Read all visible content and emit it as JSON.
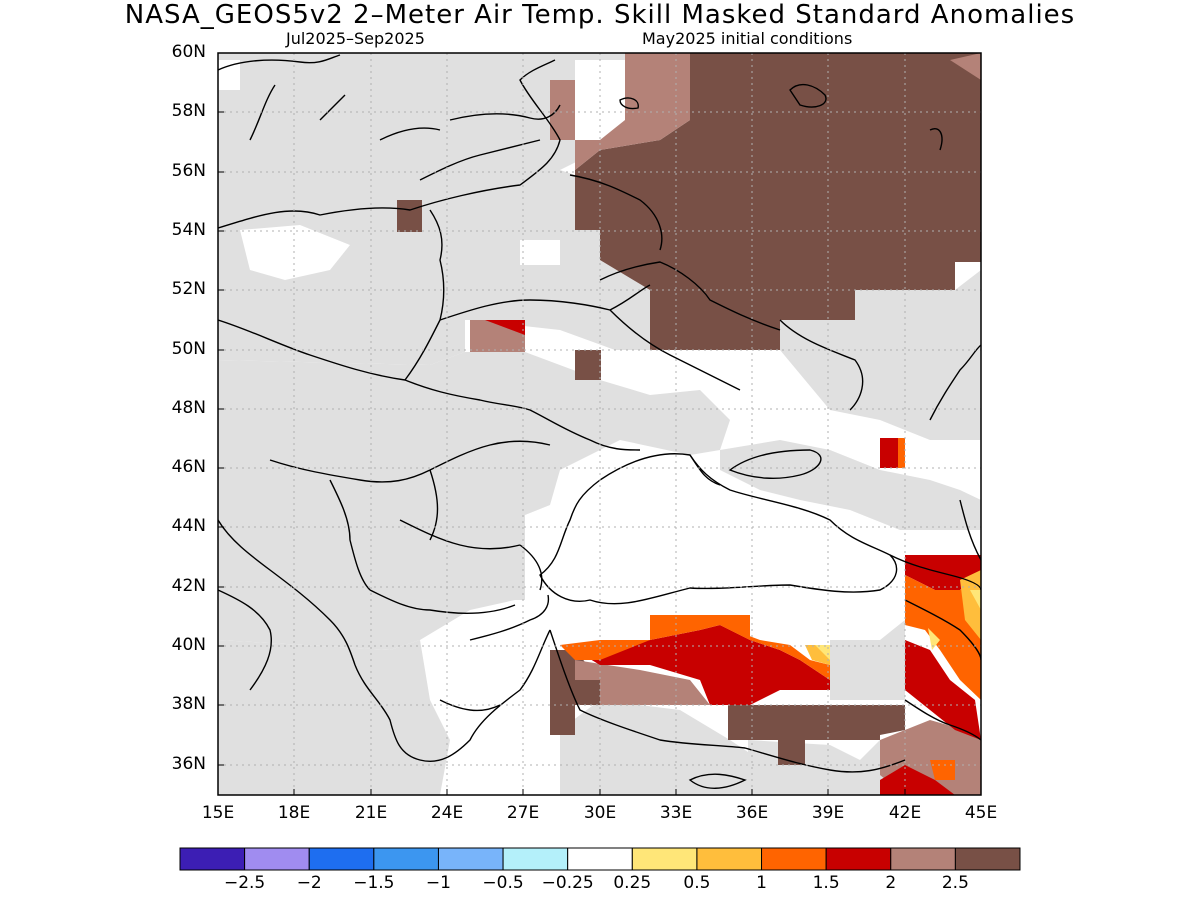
{
  "title": "NASA_GEOS5v2 2–Meter Air Temp. Skill Masked Standard Anomalies",
  "subtitle_left": "Jul2025–Sep2025",
  "subtitle_right": "May2025 initial conditions",
  "map": {
    "lat_labels": [
      "60N",
      "58N",
      "56N",
      "54N",
      "52N",
      "50N",
      "48N",
      "46N",
      "44N",
      "42N",
      "40N",
      "38N",
      "36N"
    ],
    "lon_labels": [
      "15E",
      "18E",
      "21E",
      "24E",
      "27E",
      "30E",
      "33E",
      "36E",
      "39E",
      "42E",
      "45E"
    ],
    "colors": {
      "land_masked": "#e0e0e0",
      "ocean": "#ffffff",
      "coastline": "#000000",
      "grid": "#b0b0b0"
    }
  },
  "colorbar": {
    "colors": [
      "#3c1eb4",
      "#a08cf0",
      "#1e6ef0",
      "#3c96f0",
      "#78b4fa",
      "#b4f0fa",
      "#ffffff",
      "#ffe678",
      "#ffbe3c",
      "#ff6400",
      "#c80000",
      "#b48278",
      "#785046"
    ],
    "labels": [
      "−2.5",
      "−2",
      "−1.5",
      "−1",
      "−0.5",
      "−0.25",
      "0.25",
      "0.5",
      "1",
      "1.5",
      "2",
      "2.5"
    ]
  }
}
